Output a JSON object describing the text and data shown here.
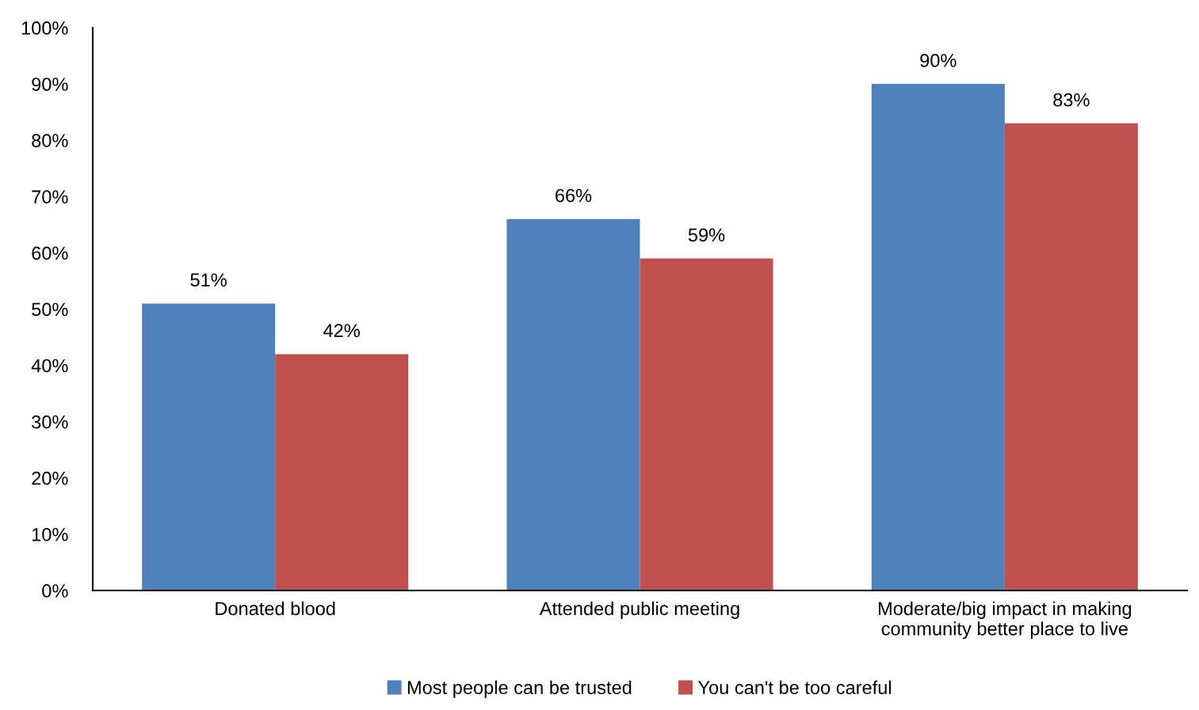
{
  "chart_data": {
    "type": "bar",
    "categories": [
      "Donated blood",
      "Attended public meeting",
      "Moderate/big impact in making\ncommunity better place to live"
    ],
    "series": [
      {
        "name": "Most people can be trusted",
        "color": "#4f81bd",
        "values": [
          51,
          66,
          90
        ],
        "value_labels": [
          "51%",
          "66%",
          "90%"
        ]
      },
      {
        "name": "You can't be too careful",
        "color": "#c0504d",
        "values": [
          42,
          59,
          83
        ],
        "value_labels": [
          "42%",
          "59%",
          "83%"
        ]
      }
    ],
    "ylim": [
      0,
      100
    ],
    "yticks": [
      {
        "value": 0,
        "label": "0%"
      },
      {
        "value": 10,
        "label": "10%"
      },
      {
        "value": 20,
        "label": "20%"
      },
      {
        "value": 30,
        "label": "30%"
      },
      {
        "value": 40,
        "label": "40%"
      },
      {
        "value": 50,
        "label": "50%"
      },
      {
        "value": 60,
        "label": "60%"
      },
      {
        "value": 70,
        "label": "70%"
      },
      {
        "value": 80,
        "label": "80%"
      },
      {
        "value": 90,
        "label": "90%"
      },
      {
        "value": 100,
        "label": "100%"
      }
    ],
    "grid": false,
    "legend": "bottom"
  }
}
